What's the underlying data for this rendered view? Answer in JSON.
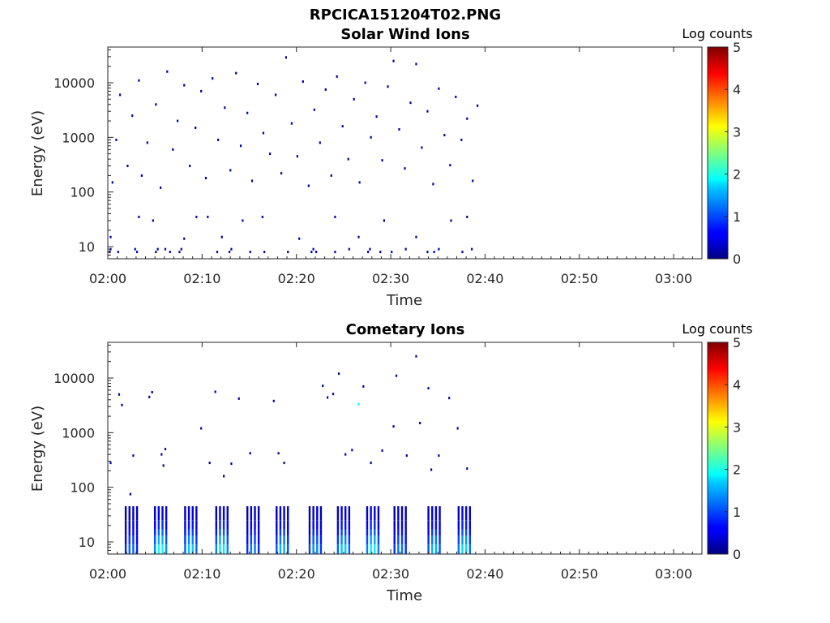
{
  "figure": {
    "title": "RPCICA151204T02.PNG"
  },
  "chart_data": [
    {
      "type": "heatmap",
      "title": "Solar Wind Ions",
      "xlabel": "Time",
      "ylabel": "Energy (eV)",
      "xticks": [
        "02:00",
        "02:10",
        "02:20",
        "02:30",
        "02:40",
        "02:50",
        "03:00"
      ],
      "xlim_minutes": [
        0,
        63
      ],
      "yscale": "log",
      "yticks": [
        10,
        100,
        1000,
        10000
      ],
      "ytick_labels": [
        "10",
        "100",
        "1000",
        "10000"
      ],
      "ylim": [
        6,
        45000
      ],
      "data_end_minute": 39.5,
      "colorbar": {
        "label": "Log counts",
        "ticks": [
          "0",
          "1",
          "2",
          "3",
          "4",
          "5"
        ],
        "range": [
          0,
          5
        ],
        "colormap": "jet"
      },
      "description_pattern": "sparse single-count hits (log counts ~0-0.5) spread across 10 eV - 20000 eV from 02:00 to ~02:39",
      "points": [
        [
          0.2,
          8,
          0.3
        ],
        [
          0.3,
          9,
          0.3
        ],
        [
          1.1,
          8,
          0.2
        ],
        [
          2.9,
          9,
          0.3
        ],
        [
          3.1,
          8,
          0.3
        ],
        [
          5.1,
          8,
          0.2
        ],
        [
          5.3,
          9,
          0.3
        ],
        [
          6.1,
          9,
          0.3
        ],
        [
          6.6,
          8,
          0.2
        ],
        [
          7.6,
          8,
          0.3
        ],
        [
          7.8,
          9,
          0.2
        ],
        [
          11.6,
          8,
          0.2
        ],
        [
          12.9,
          8,
          0.3
        ],
        [
          13.1,
          9,
          0.2
        ],
        [
          15.1,
          8,
          0.2
        ],
        [
          16.6,
          8,
          0.3
        ],
        [
          19.1,
          8,
          0.2
        ],
        [
          21.6,
          8,
          0.3
        ],
        [
          21.8,
          9,
          0.3
        ],
        [
          22.1,
          8,
          0.2
        ],
        [
          24.1,
          8,
          0.2
        ],
        [
          25.6,
          9,
          0.3
        ],
        [
          27.6,
          8,
          0.3
        ],
        [
          27.8,
          9,
          0.2
        ],
        [
          28.9,
          8,
          0.2
        ],
        [
          30.1,
          8,
          0.3
        ],
        [
          31.6,
          9,
          0.3
        ],
        [
          33.9,
          8,
          0.2
        ],
        [
          34.6,
          8,
          0.3
        ],
        [
          35.1,
          9,
          0.3
        ],
        [
          37.6,
          8,
          0.2
        ],
        [
          38.6,
          9,
          0.2
        ],
        [
          0.3,
          15,
          0.2
        ],
        [
          3.3,
          35,
          0.2
        ],
        [
          4.8,
          30,
          0.2
        ],
        [
          8.1,
          14,
          0.2
        ],
        [
          9.4,
          35,
          0.2
        ],
        [
          10.6,
          35,
          0.2
        ],
        [
          12.1,
          15,
          0.2
        ],
        [
          14.3,
          30,
          0.2
        ],
        [
          16.4,
          35,
          0.2
        ],
        [
          20.3,
          14,
          0.2
        ],
        [
          24.1,
          35,
          0.2
        ],
        [
          26.6,
          15,
          0.2
        ],
        [
          29.3,
          30,
          0.2
        ],
        [
          32.7,
          15,
          0.2
        ],
        [
          36.4,
          30,
          0.2
        ],
        [
          38.1,
          35,
          0.2
        ],
        [
          0.5,
          150,
          0.2
        ],
        [
          0.9,
          900,
          0.2
        ],
        [
          1.3,
          6000,
          0.2
        ],
        [
          2.1,
          300,
          0.2
        ],
        [
          2.6,
          2500,
          0.2
        ],
        [
          3.3,
          11000,
          0.2
        ],
        [
          3.6,
          200,
          0.2
        ],
        [
          4.2,
          800,
          0.2
        ],
        [
          5.1,
          4000,
          0.2
        ],
        [
          5.6,
          120,
          0.2
        ],
        [
          6.3,
          16000,
          0.2
        ],
        [
          6.9,
          600,
          0.2
        ],
        [
          7.4,
          2000,
          0.2
        ],
        [
          8.1,
          9000,
          0.2
        ],
        [
          8.7,
          300,
          0.2
        ],
        [
          9.3,
          1500,
          0.2
        ],
        [
          9.9,
          7000,
          0.2
        ],
        [
          10.4,
          180,
          0.2
        ],
        [
          11.1,
          12000,
          0.2
        ],
        [
          11.7,
          900,
          0.2
        ],
        [
          12.4,
          3500,
          0.2
        ],
        [
          13.0,
          250,
          0.2
        ],
        [
          13.6,
          15000,
          0.2
        ],
        [
          14.1,
          700,
          0.2
        ],
        [
          14.8,
          2800,
          0.2
        ],
        [
          15.3,
          160,
          0.2
        ],
        [
          15.9,
          9500,
          0.2
        ],
        [
          16.5,
          1200,
          0.2
        ],
        [
          17.2,
          500,
          0.2
        ],
        [
          17.8,
          6000,
          0.2
        ],
        [
          18.4,
          220,
          0.2
        ],
        [
          18.9,
          29000,
          0.2
        ],
        [
          19.5,
          1800,
          0.2
        ],
        [
          20.1,
          450,
          0.2
        ],
        [
          20.7,
          10500,
          0.2
        ],
        [
          21.3,
          130,
          0.2
        ],
        [
          21.9,
          3200,
          0.2
        ],
        [
          22.5,
          800,
          0.2
        ],
        [
          23.1,
          7500,
          0.2
        ],
        [
          23.7,
          200,
          0.2
        ],
        [
          24.3,
          13000,
          0.2
        ],
        [
          24.9,
          1600,
          0.2
        ],
        [
          25.5,
          400,
          0.2
        ],
        [
          26.1,
          5000,
          0.2
        ],
        [
          26.7,
          150,
          0.2
        ],
        [
          27.3,
          10000,
          0.2
        ],
        [
          27.9,
          1000,
          0.2
        ],
        [
          28.5,
          2400,
          0.2
        ],
        [
          29.1,
          380,
          0.2
        ],
        [
          29.7,
          8500,
          0.2
        ],
        [
          30.3,
          25000,
          0.2
        ],
        [
          30.9,
          1400,
          0.2
        ],
        [
          31.5,
          270,
          0.2
        ],
        [
          32.1,
          4300,
          0.2
        ],
        [
          32.7,
          22000,
          0.2
        ],
        [
          33.3,
          650,
          0.2
        ],
        [
          33.9,
          3000,
          0.2
        ],
        [
          34.5,
          140,
          0.2
        ],
        [
          35.1,
          7800,
          0.2
        ],
        [
          35.7,
          1100,
          0.2
        ],
        [
          36.3,
          310,
          0.2
        ],
        [
          36.9,
          5500,
          0.2
        ],
        [
          37.5,
          900,
          0.2
        ],
        [
          38.1,
          2200,
          0.2
        ],
        [
          38.7,
          160,
          0.2
        ],
        [
          39.2,
          3800,
          0.2
        ]
      ]
    },
    {
      "type": "heatmap",
      "title": "Cometary Ions",
      "xlabel": "Time",
      "ylabel": "Energy (eV)",
      "xticks": [
        "02:00",
        "02:10",
        "02:20",
        "02:30",
        "02:40",
        "02:50",
        "03:00"
      ],
      "xlim_minutes": [
        0,
        63
      ],
      "yscale": "log",
      "yticks": [
        10,
        100,
        1000,
        10000
      ],
      "ytick_labels": [
        "10",
        "100",
        "1000",
        "10000"
      ],
      "ylim": [
        6,
        45000
      ],
      "data_end_minute": 39.0,
      "colorbar": {
        "label": "Log counts",
        "ticks": [
          "0",
          "1",
          "2",
          "3",
          "4",
          "5"
        ],
        "range": [
          0,
          5
        ],
        "colormap": "jet"
      },
      "description_pattern": "periodic bursts (~every 3 min) below ~40 eV reaching log counts ~1.5-2, plus sparse hits up to ~25000 eV",
      "bursts": [
        {
          "t": 2.5,
          "peak": 1.1
        },
        {
          "t": 5.6,
          "peak": 1.9
        },
        {
          "t": 8.8,
          "peak": 1.6
        },
        {
          "t": 12.1,
          "peak": 1.8
        },
        {
          "t": 15.4,
          "peak": 1.2
        },
        {
          "t": 18.5,
          "peak": 1.5
        },
        {
          "t": 22.0,
          "peak": 1.3
        },
        {
          "t": 25.0,
          "peak": 1.6
        },
        {
          "t": 28.1,
          "peak": 1.8
        },
        {
          "t": 31.0,
          "peak": 1.2
        },
        {
          "t": 34.6,
          "peak": 1.5
        },
        {
          "t": 37.8,
          "peak": 1.7
        }
      ],
      "points": [
        [
          0.3,
          280,
          0.2
        ],
        [
          1.2,
          5000,
          0.2
        ],
        [
          1.5,
          3200,
          0.2
        ],
        [
          2.4,
          75,
          0.2
        ],
        [
          2.7,
          380,
          0.2
        ],
        [
          4.4,
          4500,
          0.2
        ],
        [
          4.7,
          5500,
          0.2
        ],
        [
          5.7,
          400,
          0.2
        ],
        [
          5.9,
          250,
          0.2
        ],
        [
          6.1,
          500,
          0.2
        ],
        [
          9.9,
          1200,
          0.2
        ],
        [
          10.8,
          280,
          0.2
        ],
        [
          11.4,
          5600,
          0.2
        ],
        [
          12.3,
          160,
          0.2
        ],
        [
          13.1,
          270,
          0.2
        ],
        [
          13.9,
          4200,
          0.2
        ],
        [
          15.1,
          420,
          0.2
        ],
        [
          17.6,
          3800,
          0.2
        ],
        [
          18.1,
          420,
          0.2
        ],
        [
          18.7,
          280,
          0.2
        ],
        [
          22.8,
          7200,
          0.2
        ],
        [
          23.3,
          4400,
          0.2
        ],
        [
          23.9,
          5100,
          0.2
        ],
        [
          24.5,
          12000,
          0.2
        ],
        [
          25.2,
          400,
          0.2
        ],
        [
          25.9,
          480,
          0.2
        ],
        [
          26.6,
          3300,
          1.9
        ],
        [
          27.1,
          7000,
          0.2
        ],
        [
          27.9,
          280,
          0.2
        ],
        [
          29.1,
          470,
          0.2
        ],
        [
          30.3,
          1300,
          0.2
        ],
        [
          30.6,
          11000,
          0.2
        ],
        [
          31.7,
          380,
          0.2
        ],
        [
          32.7,
          25000,
          0.2
        ],
        [
          33.1,
          1500,
          0.2
        ],
        [
          34.0,
          6500,
          0.2
        ],
        [
          34.3,
          210,
          0.2
        ],
        [
          35.1,
          380,
          0.2
        ],
        [
          36.2,
          4300,
          0.2
        ],
        [
          37.1,
          1200,
          0.2
        ],
        [
          38.1,
          220,
          0.2
        ]
      ]
    }
  ]
}
